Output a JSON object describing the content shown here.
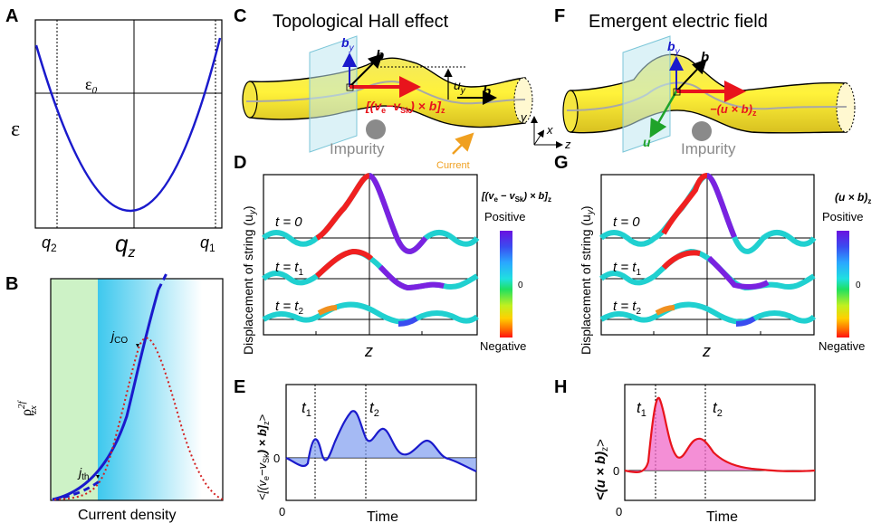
{
  "panels": {
    "A": {
      "letter": "A",
      "ylabel": "ε",
      "epsilon0": "ε",
      "epsilon0_sub": "0",
      "q2": "q",
      "q2_sub": "2",
      "qz": "q",
      "qz_sub": "z",
      "q1": "q",
      "q1_sub": "1"
    },
    "B": {
      "letter": "B",
      "ylabel_main": "ρ",
      "ylabel_sup": "2f",
      "ylabel_sub": "zx",
      "xlabel": "Current density",
      "jco": "j",
      "jco_sub": "CO",
      "jth": "j",
      "jth_sub": "th"
    },
    "C": {
      "letter": "C",
      "title": "Topological Hall effect",
      "by": "b",
      "by_sub": "y",
      "b": "b",
      "uy": "u",
      "uy_sub": "y",
      "force_label": "[(v",
      "force_label_e": "e",
      "force_label_mid": "−v",
      "force_label_sk": "Sk",
      "force_label_end": ") × b]",
      "force_label_z": "z",
      "impurity": "Impurity",
      "current": "Current",
      "axis_x": "x",
      "axis_y": "y",
      "axis_z": "z"
    },
    "D": {
      "letter": "D",
      "ylabel": "Displacement of string (u",
      "ylabel_sub": "y",
      "ylabel_end": ")",
      "xlabel": "z",
      "t0": "t = 0",
      "t1": "t = t",
      "t1_sub": "1",
      "t2": "t = t",
      "t2_sub": "2",
      "cbar_title": "[(v",
      "cbar_title_e": "e",
      "cbar_title_mid": " − v",
      "cbar_title_sk": "Sk",
      "cbar_title_end": ") × b]",
      "cbar_title_z": "z",
      "cbar_pos": "Positive",
      "cbar_zero": "0",
      "cbar_neg": "Negative"
    },
    "E": {
      "letter": "E",
      "ylabel": "<[(v",
      "ylabel_e": "e",
      "ylabel_mid": "−v",
      "ylabel_sk": "Sk",
      "ylabel_end": ") × b]",
      "ylabel_z": "z",
      "ylabel_close": ">",
      "xlabel": "Time",
      "y0": "0",
      "x0": "0",
      "t1": "t",
      "t1_sub": "1",
      "t2": "t",
      "t2_sub": "2"
    },
    "F": {
      "letter": "F",
      "title": "Emergent  electric field",
      "by": "b",
      "by_sub": "y",
      "b": "b",
      "udot": "u",
      "force_label": "−(u × b)",
      "force_label_z": "z",
      "impurity": "Impurity"
    },
    "G": {
      "letter": "G",
      "ylabel": "Displacement of string (u",
      "ylabel_sub": "y",
      "ylabel_end": ")",
      "xlabel": "z",
      "t0": "t = 0",
      "t1": "t = t",
      "t1_sub": "1",
      "t2": "t = t",
      "t2_sub": "2",
      "cbar_title": "(u × b)",
      "cbar_title_z": "z",
      "cbar_pos": "Positive",
      "cbar_zero": "0",
      "cbar_neg": "Negative"
    },
    "H": {
      "letter": "H",
      "ylabel": "<(u × b)",
      "ylabel_z": "z",
      "ylabel_close": ">",
      "xlabel": "Time",
      "y0": "0",
      "x0": "0",
      "t1": "t",
      "t1_sub": "1",
      "t2": "t",
      "t2_sub": "2"
    }
  },
  "colors": {
    "blue_curve": "#1a1acc",
    "red_dotted": "#d42020",
    "string_fill": "#f5e640",
    "force_red": "#e8141c",
    "current_orange": "#f0a020",
    "impurity_gray": "#8a8a8a",
    "green_arrow": "#1fa32a",
    "E_fill": "#7f9cf0",
    "H_fill": "#f06ac8",
    "H_line": "#e8141c"
  }
}
